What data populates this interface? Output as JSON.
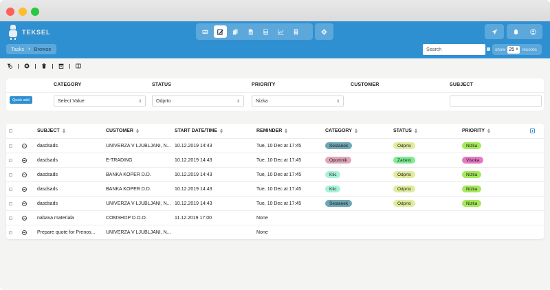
{
  "app": {
    "brand": "TEKSEL",
    "breadcrumb": {
      "root": "Tasks",
      "separator": "›",
      "current": "Browse"
    },
    "nav_icons": [
      "contact-card-icon",
      "edit-icon",
      "documents-icon",
      "file-chart-icon",
      "calculator-icon",
      "line-chart-icon",
      "building-icon"
    ],
    "active_nav_index": 1,
    "settings_icon": "gear-icon",
    "right_icons": [
      "send-icon",
      "bell-icon",
      "user-icon"
    ]
  },
  "search": {
    "placeholder": "Search",
    "value": ""
  },
  "pager": {
    "show_label": "show",
    "count": "25",
    "records_label": "records"
  },
  "toolbar": {
    "icons": [
      "filter-clear-icon",
      "add-circle-icon",
      "trash-icon",
      "archive-icon",
      "columns-icon"
    ]
  },
  "filters": {
    "quick_add_label": "Quick add",
    "columns": [
      {
        "label": "CATEGORY",
        "type": "select",
        "value": "Select Value"
      },
      {
        "label": "STATUS",
        "type": "select",
        "value": "Odprto"
      },
      {
        "label": "PRIORITY",
        "type": "select",
        "value": "Nizka"
      },
      {
        "label": "CUSTOMER",
        "type": "none",
        "value": ""
      },
      {
        "label": "SUBJECT",
        "type": "text",
        "value": ""
      }
    ]
  },
  "table": {
    "columns": [
      "SUBJECT",
      "CUSTOMER",
      "START DATE/TIME",
      "REMINDER",
      "CATEGORY",
      "STATUS",
      "PRIORITY"
    ],
    "rows": [
      {
        "subject": "dasdsads",
        "customer": "UNIVERZA V LJUBLJANI, N...",
        "start": "10.12.2019 14:43",
        "reminder": "Tue, 10 Dec at 17:45",
        "category": "Sestanek",
        "status": "Odprto",
        "priority": "Nizka"
      },
      {
        "subject": "dasdsads",
        "customer": "E-TRADING",
        "start": "10.12.2019 14:43",
        "reminder": "Tue, 10 Dec at 17:45",
        "category": "Opomnik",
        "status": "Začeto",
        "priority": "Visoka"
      },
      {
        "subject": "dasdsads",
        "customer": "BANKA KOPER D.D.",
        "start": "10.12.2019 14:43",
        "reminder": "Tue, 10 Dec at 17:45",
        "category": "Klic",
        "status": "Odprto",
        "priority": "Nizka"
      },
      {
        "subject": "dasdsads",
        "customer": "BANKA KOPER D.D.",
        "start": "10.12.2019 14:43",
        "reminder": "Tue, 10 Dec at 17:45",
        "category": "Klic",
        "status": "Odprto",
        "priority": "Nizka"
      },
      {
        "subject": "dasdsads",
        "customer": "UNIVERZA V LJUBLJANI, N...",
        "start": "10.12.2019 14:43",
        "reminder": "Tue, 10 Dec at 17:45",
        "category": "Sestanek",
        "status": "Odprto",
        "priority": "Nizka"
      },
      {
        "subject": "nabava materiala",
        "customer": "COMSHOP D.O.O.",
        "start": "11.12.2019 17:00",
        "reminder": "None",
        "category": "",
        "status": "",
        "priority": ""
      },
      {
        "subject": "Prepare quote for Prenos...",
        "customer": "UNIVERZA V LJUBLJANI, N...",
        "start": "",
        "reminder": "None",
        "category": "",
        "status": "",
        "priority": ""
      }
    ]
  },
  "colors": {
    "appbar": "#2f90d1",
    "badge_sestanek": "#6fa5b5",
    "badge_opomnik": "#e1a7b7",
    "badge_klic": "#a8f2d7",
    "badge_odprto": "#e0eb9d",
    "badge_zaceto": "#7fec93",
    "badge_nizka": "#a5e85a",
    "badge_visoka": "#e67ac2"
  }
}
